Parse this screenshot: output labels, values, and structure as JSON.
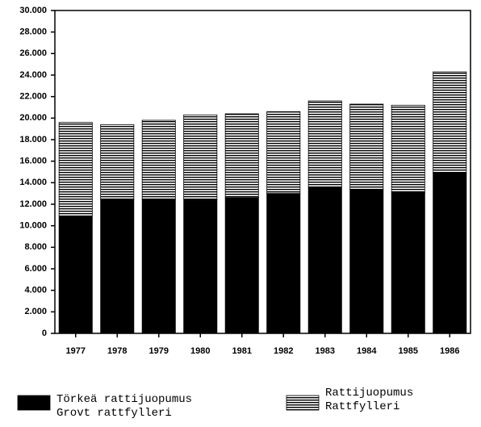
{
  "chart_data": {
    "type": "stacked_bar",
    "categories": [
      "1977",
      "1978",
      "1979",
      "1980",
      "1981",
      "1982",
      "1983",
      "1984",
      "1985",
      "1986"
    ],
    "series": [
      {
        "name": [
          "Törkeä rattijuopumus",
          "Grovt rattfylleri"
        ],
        "color": "#000000",
        "fill": "solid",
        "values": [
          10900,
          12500,
          12500,
          12400,
          12600,
          13000,
          13600,
          13400,
          13100,
          14900
        ]
      },
      {
        "name": [
          "Rattijuopumus",
          "Rattfylleri"
        ],
        "color": "#000000",
        "fill": "horizontal-lines",
        "values": [
          8700,
          6900,
          7300,
          7900,
          7800,
          7600,
          8000,
          7900,
          8100,
          9400
        ]
      }
    ],
    "ylim": [
      0,
      30000
    ],
    "yticks": [
      0,
      {
        "value": 2000,
        "label": "2.000"
      },
      {
        "value": 4000,
        "label": "4.000"
      },
      {
        "value": 6000,
        "label": "6.000"
      },
      {
        "value": 8000,
        "label": "8.000"
      },
      {
        "value": 10000,
        "label": "10.000"
      },
      {
        "value": 12000,
        "label": "12.000"
      },
      {
        "value": 14000,
        "label": "14.000"
      },
      {
        "value": 16000,
        "label": "16.000"
      },
      {
        "value": 18000,
        "label": "18.000"
      },
      {
        "value": 20000,
        "label": "20.000"
      },
      {
        "value": 22000,
        "label": "22.000"
      },
      {
        "value": 24000,
        "label": "24.000"
      },
      {
        "value": 26000,
        "label": "26.000"
      },
      {
        "value": 28000,
        "label": "28.000"
      },
      {
        "value": 30000,
        "label": "30.000"
      }
    ],
    "grid": false,
    "legend": "bottom"
  }
}
